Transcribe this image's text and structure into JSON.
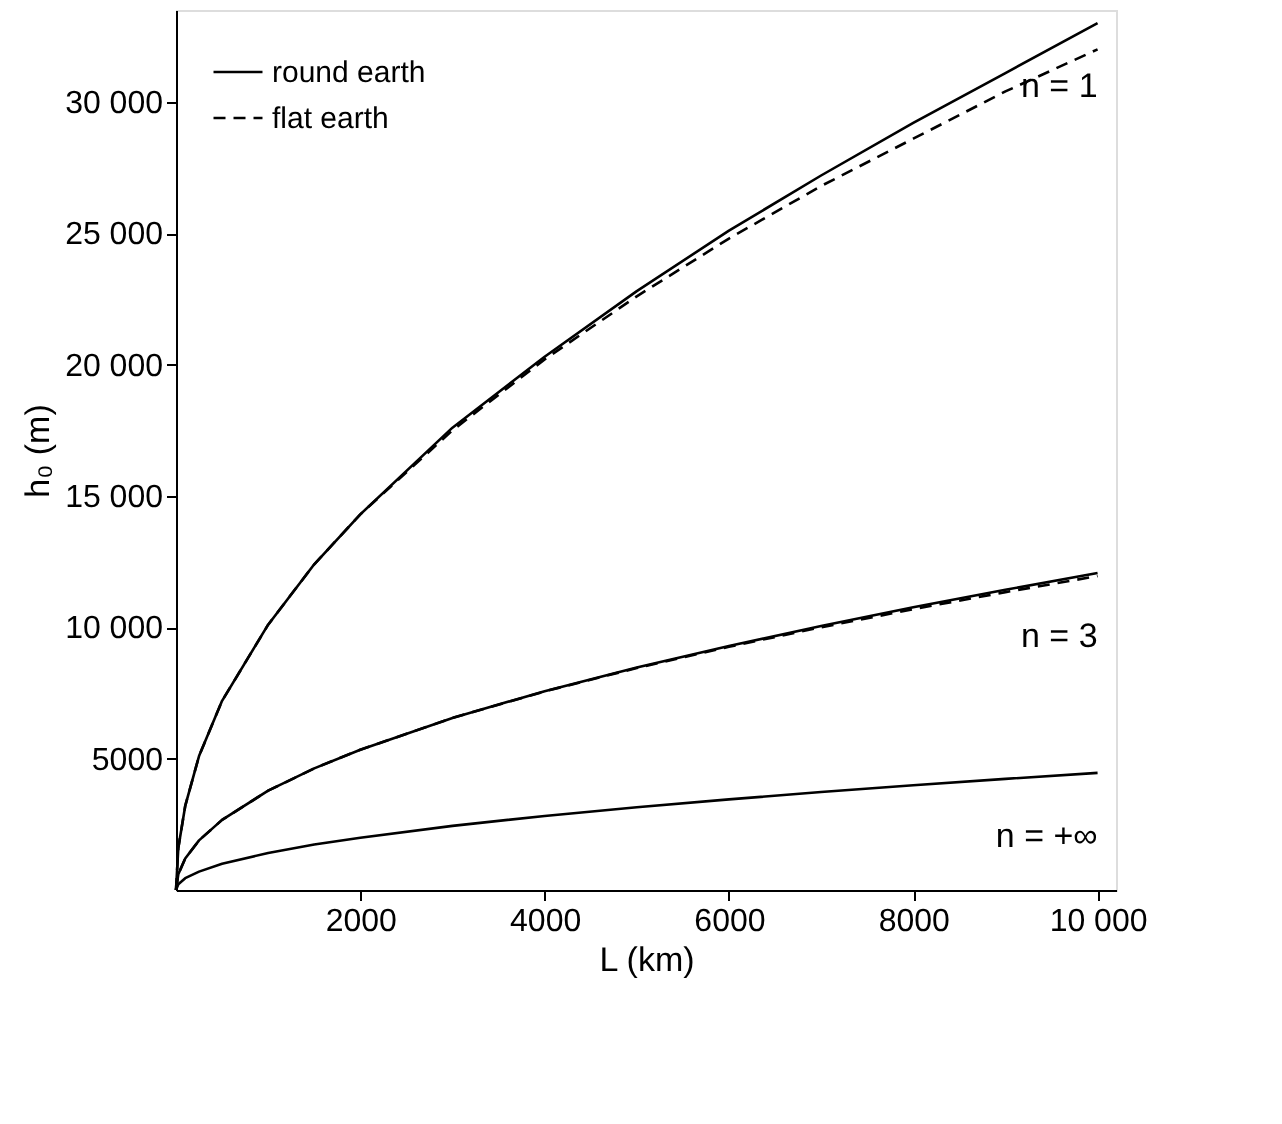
{
  "chart_data": {
    "type": "line",
    "xlabel": "L (km)",
    "ylabel": "h₀ (m)",
    "xlim": [
      0,
      10200
    ],
    "ylim": [
      0,
      33500
    ],
    "xticks": [
      2000,
      4000,
      6000,
      8000,
      {
        "value": 10000,
        "label": "10 000"
      }
    ],
    "yticks": [
      5000,
      {
        "value": 10000,
        "label": "10 000"
      },
      {
        "value": 15000,
        "label": "15 000"
      },
      {
        "value": 20000,
        "label": "20 000"
      },
      {
        "value": 25000,
        "label": "25 000"
      },
      {
        "value": 30000,
        "label": "30 000"
      }
    ],
    "x": [
      0,
      25,
      100,
      250,
      500,
      1000,
      1500,
      2000,
      3000,
      4000,
      5000,
      6000,
      7000,
      8000,
      9000,
      10000
    ],
    "grid": false,
    "legend": "top left",
    "marker": "none",
    "series": [
      {
        "name": "round earth",
        "color": "#000000",
        "line_style": "solid",
        "values": [
          0,
          1600,
          3200,
          5100,
          7200,
          10100,
          12400,
          14300,
          17600,
          20300,
          22800,
          25100,
          27200,
          29200,
          31100,
          33000
        ]
      },
      {
        "name": "flat earth",
        "color": "#000000",
        "line_style": "dashed",
        "values": [
          0,
          1600,
          3200,
          5100,
          7200,
          10100,
          12400,
          14300,
          17500,
          20200,
          22600,
          24800,
          26800,
          28600,
          30400,
          32000
        ]
      },
      {
        "color": "#000000",
        "line_style": "solid",
        "values": [
          0,
          600,
          1200,
          1890,
          2670,
          3780,
          4630,
          5340,
          6550,
          7570,
          8470,
          9290,
          10050,
          10760,
          11430,
          12070
        ]
      },
      {
        "color": "#000000",
        "line_style": "dashed",
        "values": [
          0,
          600,
          1200,
          1890,
          2670,
          3780,
          4630,
          5340,
          6550,
          7560,
          8450,
          9260,
          10000,
          10690,
          11340,
          11950
        ]
      },
      {
        "color": "#000000",
        "line_style": "solid",
        "values": [
          0,
          220,
          450,
          700,
          1000,
          1410,
          1730,
          1990,
          2440,
          2820,
          3150,
          3450,
          3730,
          3990,
          4230,
          4460
        ]
      }
    ],
    "annotations": [
      "n = 1",
      "n = 3",
      "n = +∞"
    ]
  }
}
